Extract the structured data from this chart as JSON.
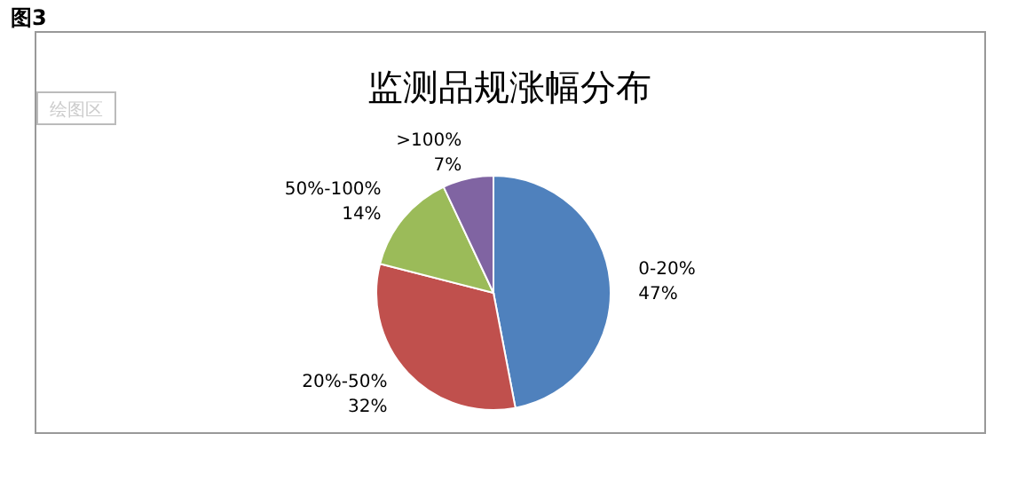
{
  "chart_data": {
    "type": "pie",
    "title": "监测品规涨幅分布",
    "categories": [
      "0-20%",
      "20%-50%",
      "50%-100%",
      ">100%"
    ],
    "values": [
      47,
      32,
      14,
      7
    ],
    "colors": [
      "#4f81bd",
      "#c0504d",
      "#9bbb59",
      "#8064a2"
    ],
    "value_labels": [
      "47%",
      "32%",
      "14%",
      "7%"
    ],
    "annotations": [
      "图3",
      "绘图区"
    ]
  }
}
